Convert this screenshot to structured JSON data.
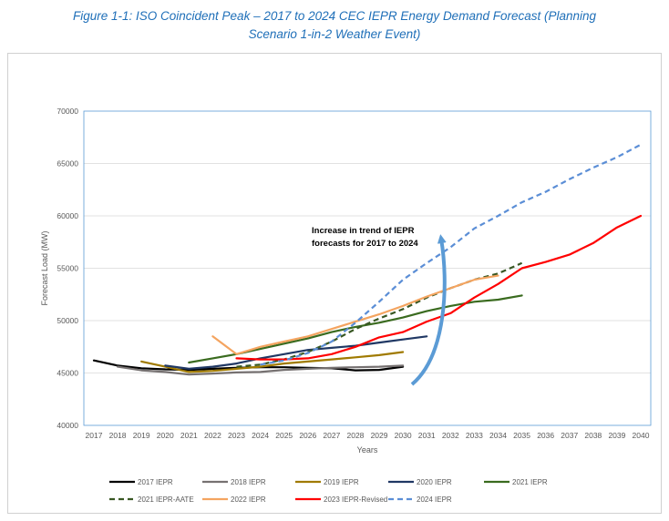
{
  "caption": {
    "line1": "Figure 1-1: ISO Coincident Peak – 2017 to 2024 CEC IEPR Energy Demand Forecast (Planning",
    "line2": "Scenario 1-in-2 Weather Event)"
  },
  "chart_data": {
    "type": "line",
    "xlabel": "Years",
    "ylabel": "Forecast Load (MW)",
    "xlim": [
      2017,
      2040
    ],
    "ylim": [
      40000,
      70000
    ],
    "xticks": [
      2017,
      2018,
      2019,
      2020,
      2021,
      2022,
      2023,
      2024,
      2025,
      2026,
      2027,
      2028,
      2029,
      2030,
      2031,
      2032,
      2033,
      2034,
      2035,
      2036,
      2037,
      2038,
      2039,
      2040
    ],
    "yticks": [
      40000,
      45000,
      50000,
      55000,
      60000,
      65000,
      70000
    ],
    "grid": "horizontal",
    "legend_position": "bottom",
    "annotation": {
      "text_line1": "Increase in trend of IEPR",
      "text_line2": "forecasts for 2017 to 2024"
    },
    "series": [
      {
        "name": "2017 IEPR",
        "color": "#000000",
        "dash": "solid",
        "width": 2.2,
        "x": [
          2017,
          2018,
          2019,
          2020,
          2021,
          2022,
          2023,
          2024,
          2025,
          2026,
          2027,
          2028,
          2029,
          2030
        ],
        "y": [
          46200,
          45700,
          45450,
          45350,
          45300,
          45400,
          45500,
          45550,
          45550,
          45500,
          45450,
          45250,
          45300,
          45600
        ]
      },
      {
        "name": "2018 IEPR",
        "color": "#767171",
        "dash": "solid",
        "width": 2.2,
        "x": [
          2018,
          2019,
          2020,
          2021,
          2022,
          2023,
          2024,
          2025,
          2026,
          2027,
          2028,
          2029,
          2030
        ],
        "y": [
          45600,
          45250,
          45100,
          44850,
          44950,
          45050,
          45100,
          45300,
          45400,
          45500,
          45550,
          45600,
          45700
        ]
      },
      {
        "name": "2019 IEPR",
        "color": "#a07a00",
        "dash": "solid",
        "width": 2.2,
        "x": [
          2019,
          2020,
          2021,
          2022,
          2023,
          2024,
          2025,
          2026,
          2027,
          2028,
          2029,
          2030
        ],
        "y": [
          46100,
          45600,
          45100,
          45200,
          45400,
          45600,
          45900,
          46100,
          46300,
          46500,
          46700,
          47000
        ]
      },
      {
        "name": "2020 IEPR",
        "color": "#203864",
        "dash": "solid",
        "width": 2.2,
        "x": [
          2020,
          2021,
          2022,
          2023,
          2024,
          2025,
          2026,
          2027,
          2028,
          2029,
          2030,
          2031
        ],
        "y": [
          45700,
          45400,
          45600,
          45900,
          46400,
          46800,
          47200,
          47400,
          47600,
          47900,
          48200,
          48500
        ]
      },
      {
        "name": "2021 IEPR",
        "color": "#3a6b1f",
        "dash": "solid",
        "width": 2.2,
        "x": [
          2021,
          2022,
          2023,
          2024,
          2025,
          2026,
          2027,
          2028,
          2029,
          2030,
          2031,
          2032,
          2033,
          2034,
          2035
        ],
        "y": [
          46000,
          46400,
          46800,
          47300,
          47800,
          48300,
          48900,
          49400,
          49800,
          50300,
          50900,
          51400,
          51800,
          52000,
          52400
        ]
      },
      {
        "name": "2021 IEPR-AATE",
        "color": "#385723",
        "dash": "dash",
        "width": 2.2,
        "x": [
          2023,
          2024,
          2025,
          2026,
          2027,
          2028,
          2029,
          2030,
          2031,
          2032,
          2033,
          2034,
          2035
        ],
        "y": [
          45600,
          45800,
          46300,
          47000,
          48000,
          49200,
          50200,
          51100,
          52200,
          53100,
          53900,
          54500,
          55500
        ]
      },
      {
        "name": "2022 IEPR",
        "color": "#f4a460",
        "dash": "solid",
        "width": 2.2,
        "x": [
          2022,
          2023,
          2024,
          2025,
          2026,
          2027,
          2028,
          2029,
          2030,
          2031,
          2032,
          2033,
          2034
        ],
        "y": [
          48500,
          46800,
          47500,
          48000,
          48500,
          49200,
          49900,
          50600,
          51400,
          52300,
          53100,
          53900,
          54300
        ]
      },
      {
        "name": "2023 IEPR-Revised",
        "color": "#ff0000",
        "dash": "solid",
        "width": 2.2,
        "x": [
          2023,
          2024,
          2025,
          2026,
          2027,
          2028,
          2029,
          2030,
          2031,
          2032,
          2033,
          2034,
          2035,
          2036,
          2037,
          2038,
          2039,
          2040
        ],
        "y": [
          46400,
          46300,
          46300,
          46400,
          46800,
          47500,
          48400,
          48900,
          49900,
          50700,
          52200,
          53500,
          55000,
          55600,
          56300,
          57400,
          58900,
          60000
        ]
      },
      {
        "name": "2024 IEPR",
        "color": "#5b8ed6",
        "dash": "dash",
        "width": 2.2,
        "x": [
          2024,
          2025,
          2026,
          2027,
          2028,
          2029,
          2030,
          2031,
          2032,
          2033,
          2034,
          2035,
          2036,
          2037,
          2038,
          2039,
          2040
        ],
        "y": [
          45800,
          46200,
          46900,
          48000,
          49800,
          51800,
          53900,
          55500,
          57000,
          58800,
          60000,
          61300,
          62300,
          63500,
          64600,
          65600,
          66800
        ]
      }
    ]
  }
}
